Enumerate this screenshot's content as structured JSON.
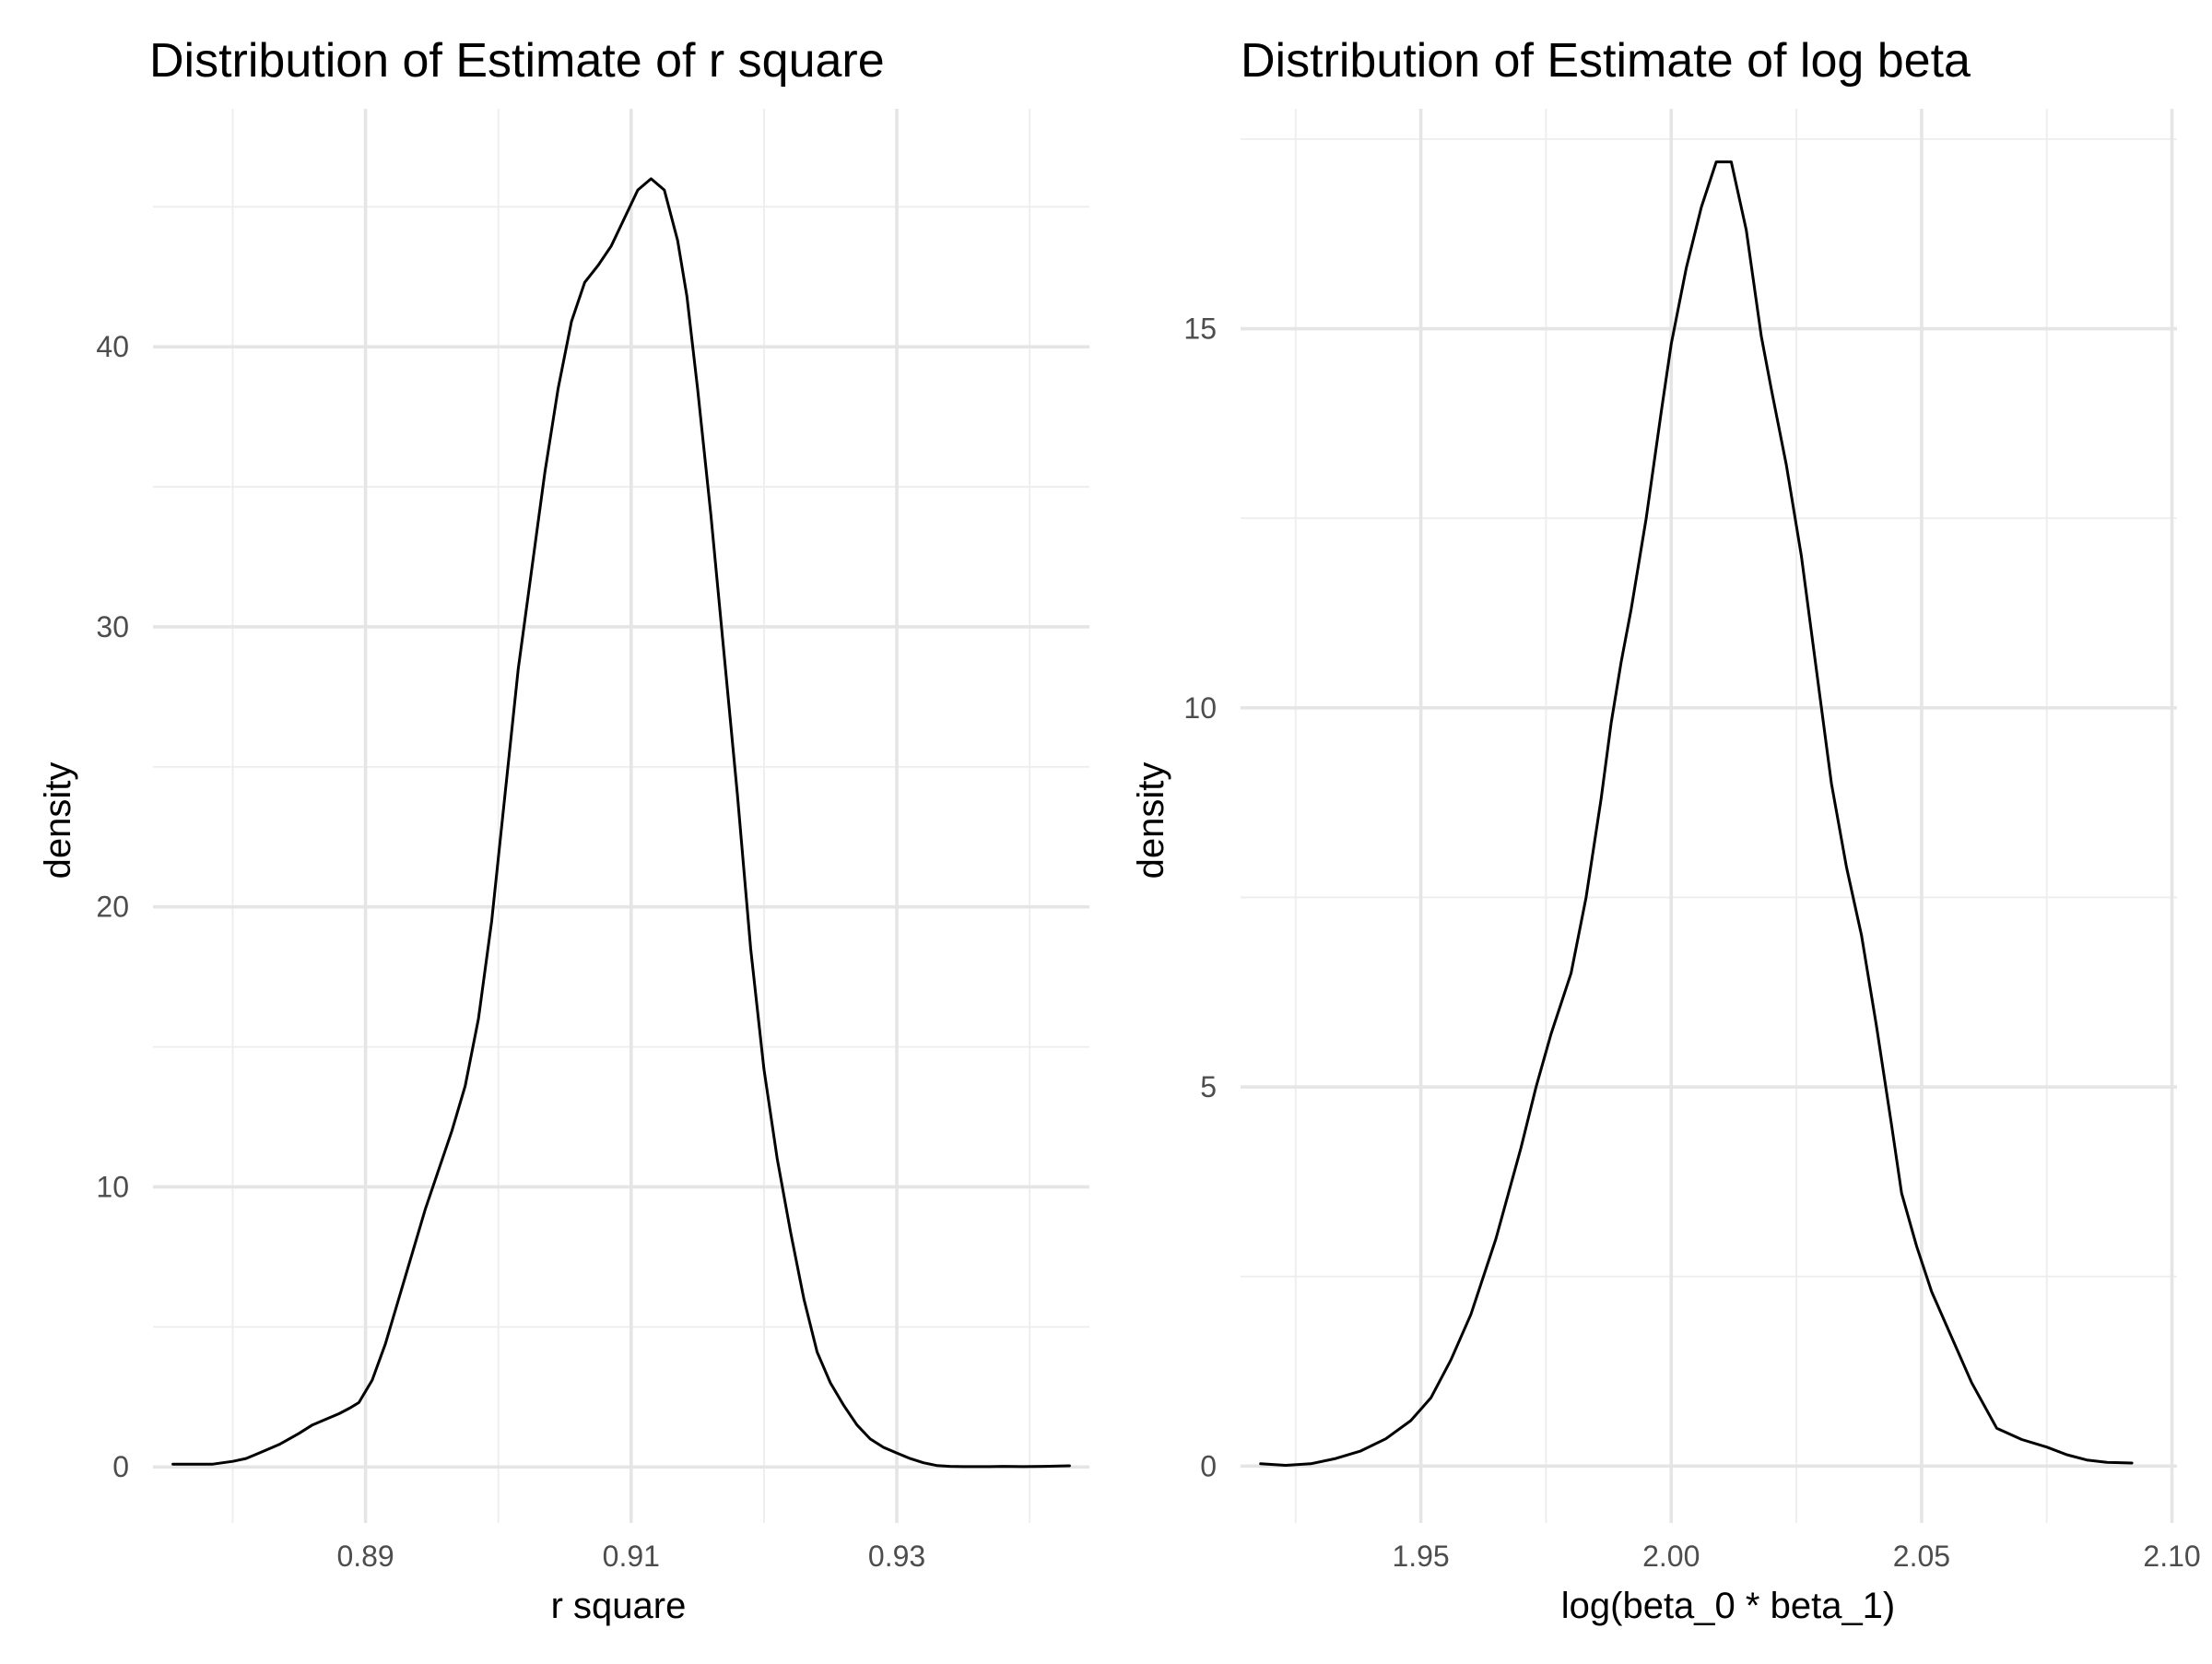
{
  "chart_data": [
    {
      "type": "line",
      "title": "Distribution of Estimate of r square",
      "xlabel": "r square",
      "ylabel": "density",
      "xlim": [
        0.874,
        0.9445
      ],
      "ylim": [
        -2.0,
        48.5
      ],
      "x_major_ticks": [
        0.89,
        0.91,
        0.93
      ],
      "x_tick_labels": [
        "0.89",
        "0.91",
        "0.93"
      ],
      "x_minor_ticks": [
        0.88,
        0.9,
        0.92,
        0.94
      ],
      "y_major_ticks": [
        0,
        10,
        20,
        30,
        40
      ],
      "y_tick_labels": [
        "0",
        "10",
        "20",
        "30",
        "40"
      ],
      "y_minor_ticks": [
        5,
        15,
        25,
        35,
        45
      ],
      "grid": true,
      "series": [
        {
          "x": [
            0.8755,
            0.877,
            0.8785,
            0.88,
            0.881,
            0.882,
            0.8835,
            0.885,
            0.886,
            0.887,
            0.888,
            0.8888,
            0.8895,
            0.8905,
            0.8915,
            0.8925,
            0.8935,
            0.8945,
            0.8955,
            0.8965,
            0.8975,
            0.8985,
            0.8995,
            0.9005,
            0.9015,
            0.9025,
            0.9035,
            0.9045,
            0.9055,
            0.9065,
            0.9075,
            0.9085,
            0.9095,
            0.9105,
            0.9115,
            0.9125,
            0.9135,
            0.9142,
            0.915,
            0.916,
            0.917,
            0.918,
            0.919,
            0.92,
            0.921,
            0.922,
            0.923,
            0.924,
            0.925,
            0.926,
            0.927,
            0.928,
            0.929,
            0.93,
            0.931,
            0.932,
            0.933,
            0.934,
            0.935,
            0.936,
            0.937,
            0.938,
            0.9395,
            0.941,
            0.943
          ],
          "y": [
            0.1,
            0.1,
            0.1,
            0.2,
            0.3,
            0.5,
            0.8,
            1.2,
            1.5,
            1.7,
            1.9,
            2.1,
            2.3,
            3.1,
            4.4,
            6.0,
            7.6,
            9.2,
            10.6,
            12.0,
            13.6,
            16.0,
            19.5,
            24.0,
            28.5,
            32.0,
            35.5,
            38.5,
            40.9,
            42.3,
            42.9,
            43.6,
            44.6,
            45.6,
            46.0,
            45.6,
            43.8,
            41.8,
            38.5,
            34.0,
            29.0,
            24.0,
            18.5,
            14.2,
            11.0,
            8.4,
            6.0,
            4.1,
            3.0,
            2.2,
            1.5,
            1.0,
            0.7,
            0.5,
            0.3,
            0.15,
            0.05,
            0.02,
            0.01,
            0.01,
            0.01,
            0.02,
            0.01,
            0.02,
            0.04
          ]
        }
      ]
    },
    {
      "type": "line",
      "title": "Distribution of Estimate of log beta",
      "xlabel": "log(beta_0 * beta_1)",
      "ylabel": "density",
      "xlim": [
        1.914,
        2.101
      ],
      "ylim": [
        -0.75,
        17.9
      ],
      "x_major_ticks": [
        1.95,
        2.0,
        2.05,
        2.1
      ],
      "x_tick_labels": [
        "1.95",
        "2.00",
        "2.05",
        "2.10"
      ],
      "x_minor_ticks": [
        1.925,
        1.975,
        2.025,
        2.075
      ],
      "y_major_ticks": [
        0,
        5,
        10,
        15
      ],
      "y_tick_labels": [
        "0",
        "5",
        "10",
        "15"
      ],
      "y_minor_ticks": [
        2.5,
        7.5,
        12.5,
        17.5
      ],
      "grid": true,
      "series": [
        {
          "x": [
            1.918,
            1.923,
            1.928,
            1.933,
            1.938,
            1.943,
            1.948,
            1.952,
            1.956,
            1.96,
            1.965,
            1.97,
            1.973,
            1.976,
            1.98,
            1.983,
            1.986,
            1.988,
            1.99,
            1.992,
            1.995,
            1.998,
            2.0,
            2.003,
            2.006,
            2.009,
            2.012,
            2.015,
            2.018,
            2.02,
            2.023,
            2.026,
            2.029,
            2.032,
            2.035,
            2.038,
            2.041,
            2.044,
            2.046,
            2.049,
            2.052,
            2.056,
            2.06,
            2.065,
            2.07,
            2.075,
            2.079,
            2.083,
            2.087,
            2.092
          ],
          "y": [
            0.03,
            0.01,
            0.03,
            0.1,
            0.2,
            0.36,
            0.6,
            0.9,
            1.4,
            2.0,
            3.0,
            4.2,
            5.0,
            5.7,
            6.5,
            7.5,
            8.8,
            9.8,
            10.6,
            11.3,
            12.5,
            13.9,
            14.8,
            15.8,
            16.6,
            17.2,
            17.2,
            16.3,
            14.9,
            14.2,
            13.2,
            12.0,
            10.5,
            9.0,
            7.9,
            7.0,
            5.8,
            4.5,
            3.6,
            2.9,
            2.3,
            1.7,
            1.1,
            0.5,
            0.35,
            0.25,
            0.15,
            0.08,
            0.05,
            0.04
          ]
        }
      ]
    }
  ]
}
